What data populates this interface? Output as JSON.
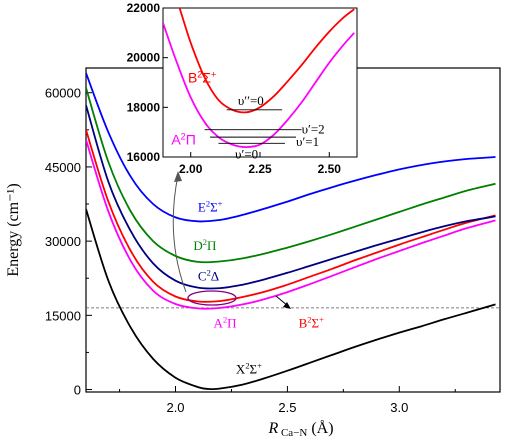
{
  "chart_data": {
    "type": "line",
    "xlabel": "R",
    "xlabel_sub": "Ca−N",
    "xlabel_unit": "(Å)",
    "ylabel": "Energy (cm⁻¹)",
    "xlim": [
      1.6,
      3.45
    ],
    "ylim": [
      -500,
      65000
    ],
    "xticks": [
      2.0,
      2.5,
      3.0
    ],
    "xtick_labels": [
      "2.0",
      "2.5",
      "3.0"
    ],
    "yticks": [
      0,
      15000,
      30000,
      45000,
      60000
    ],
    "ytick_labels": [
      "0",
      "15000",
      "30000",
      "45000",
      "60000"
    ],
    "reference_line": {
      "y": 16500,
      "style": "dashed",
      "color": "#555555"
    },
    "series": [
      {
        "name": "X²Σ⁺",
        "color": "#000000",
        "label_pos": [
          2.27,
          3200
        ],
        "x": [
          1.6,
          1.7,
          1.8,
          1.9,
          2.0,
          2.1,
          2.15,
          2.2,
          2.3,
          2.4,
          2.5,
          2.6,
          2.7,
          2.8,
          2.9,
          3.0,
          3.1,
          3.2,
          3.3,
          3.43
        ],
        "y": [
          36500,
          22000,
          12500,
          6200,
          2400,
          500,
          100,
          200,
          1000,
          2300,
          3800,
          5400,
          7000,
          8600,
          10100,
          11500,
          12800,
          14200,
          15500,
          17200
        ]
      },
      {
        "name": "A²Π",
        "color": "#ff00ff",
        "label_pos": [
          2.17,
          12500
        ],
        "x": [
          1.6,
          1.7,
          1.8,
          1.9,
          2.0,
          2.1,
          2.2,
          2.3,
          2.4,
          2.5,
          2.6,
          2.7,
          2.8,
          2.9,
          3.0,
          3.1,
          3.2,
          3.3,
          3.43
        ],
        "y": [
          50500,
          36000,
          26000,
          20000,
          17300,
          16400,
          16500,
          17200,
          18300,
          19700,
          21300,
          23000,
          24700,
          26400,
          28000,
          29600,
          31100,
          32600,
          34200
        ]
      },
      {
        "name": "B²Σ⁺",
        "color": "#ff0000",
        "label_pos": [
          2.55,
          12500
        ],
        "x": [
          1.6,
          1.7,
          1.8,
          1.9,
          2.0,
          2.1,
          2.2,
          2.3,
          2.4,
          2.5,
          2.6,
          2.7,
          2.8,
          2.9,
          3.0,
          3.1,
          3.2,
          3.3,
          3.43
        ],
        "y": [
          52500,
          38000,
          28000,
          21800,
          18800,
          17800,
          17900,
          18700,
          19800,
          21200,
          22800,
          24400,
          26100,
          27700,
          29300,
          30800,
          32300,
          33700,
          35200
        ]
      },
      {
        "name": "C²Δ",
        "color": "#000080",
        "label_pos": [
          2.1,
          22000
        ],
        "x": [
          1.6,
          1.7,
          1.8,
          1.9,
          2.0,
          2.1,
          2.2,
          2.3,
          2.4,
          2.5,
          2.6,
          2.7,
          2.8,
          2.9,
          3.0,
          3.1,
          3.2,
          3.3,
          3.43
        ],
        "y": [
          57500,
          42000,
          32000,
          25500,
          22000,
          20600,
          20500,
          21200,
          22300,
          23600,
          25000,
          26400,
          27800,
          29200,
          30500,
          31800,
          33000,
          34000,
          35000
        ]
      },
      {
        "name": "D²Π",
        "color": "#008000",
        "label_pos": [
          2.08,
          28200
        ],
        "x": [
          1.6,
          1.7,
          1.8,
          1.9,
          2.0,
          2.1,
          2.2,
          2.3,
          2.4,
          2.5,
          2.6,
          2.7,
          2.8,
          2.9,
          3.0,
          3.1,
          3.2,
          3.3,
          3.43
        ],
        "y": [
          61000,
          46000,
          36000,
          30000,
          27000,
          25800,
          25900,
          26500,
          27500,
          28700,
          30000,
          31400,
          32900,
          34400,
          35900,
          37400,
          38800,
          40200,
          41600
        ]
      },
      {
        "name": "E²Σ⁺",
        "color": "#0000ff",
        "label_pos": [
          2.1,
          36000
        ],
        "x": [
          1.6,
          1.7,
          1.8,
          1.9,
          2.0,
          2.1,
          2.2,
          2.3,
          2.4,
          2.5,
          2.6,
          2.7,
          2.8,
          2.9,
          3.0,
          3.1,
          3.2,
          3.3,
          3.43
        ],
        "y": [
          64000,
          52000,
          43000,
          37500,
          34800,
          34000,
          34300,
          35300,
          36600,
          38000,
          39500,
          40900,
          42200,
          43400,
          44500,
          45400,
          46100,
          46600,
          47000
        ]
      }
    ],
    "inset": {
      "xlim": [
        1.9,
        2.6
      ],
      "ylim": [
        16000,
        22000
      ],
      "xticks": [
        2.0,
        2.25,
        2.5
      ],
      "xtick_labels": [
        "2.00",
        "2.25",
        "2.50"
      ],
      "yticks": [
        16000,
        18000,
        20000,
        22000
      ],
      "ytick_labels": [
        "16000",
        "18000",
        "20000",
        "22000"
      ],
      "series": [
        {
          "name": "B²Σ⁺",
          "color": "#ff0000",
          "label_pos": [
            1.99,
            19000
          ],
          "x": [
            1.96,
            2.0,
            2.05,
            2.1,
            2.15,
            2.2,
            2.25,
            2.3,
            2.35,
            2.4,
            2.45,
            2.5,
            2.55,
            2.59
          ],
          "y": [
            22000,
            20600,
            19200,
            18300,
            17900,
            17800,
            18000,
            18450,
            19050,
            19700,
            20400,
            21050,
            21600,
            21950
          ]
        },
        {
          "name": "A²Π",
          "color": "#ff00ff",
          "label_pos": [
            1.93,
            16500
          ],
          "x": [
            1.9,
            1.95,
            2.0,
            2.05,
            2.1,
            2.15,
            2.2,
            2.25,
            2.3,
            2.35,
            2.4,
            2.45,
            2.5,
            2.55,
            2.59
          ],
          "y": [
            21400,
            19800,
            18400,
            17400,
            16800,
            16500,
            16400,
            16500,
            16900,
            17500,
            18200,
            19000,
            19800,
            20500,
            21000
          ]
        }
      ],
      "vibrational_levels": [
        {
          "label": "υ′′=0",
          "y": 17900,
          "x": [
            2.13,
            2.33
          ],
          "label_pos": [
            2.17,
            18250
          ]
        },
        {
          "label": "υ′=2",
          "y": 17100,
          "x": [
            2.05,
            2.4
          ],
          "label_pos": [
            2.4,
            17100
          ]
        },
        {
          "label": "υ′=1",
          "y": 16800,
          "x": [
            2.07,
            2.38
          ],
          "label_pos": [
            2.38,
            16600
          ]
        },
        {
          "label": "υ′=0",
          "y": 16550,
          "x": [
            2.1,
            2.34
          ],
          "label_pos": [
            2.16,
            16100
          ]
        }
      ]
    }
  }
}
